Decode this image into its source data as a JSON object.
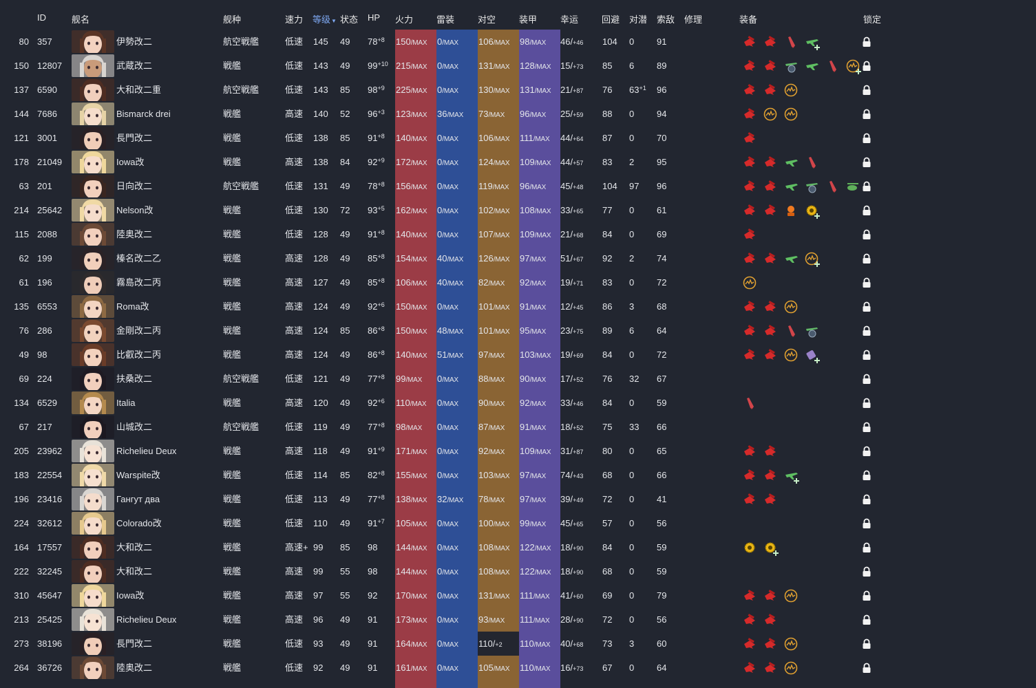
{
  "columns": {
    "id": "ID",
    "name": "舰名",
    "type": "舰种",
    "speed": "速力",
    "level": "等级",
    "condition": "状态",
    "hp": "HP",
    "firepower": "火力",
    "torpedo": "雷装",
    "aa": "对空",
    "armor": "装甲",
    "luck": "幸运",
    "evasion": "回避",
    "asw": "对潜",
    "los": "索敌",
    "repair": "修理",
    "equipment": "装备",
    "lock": "锁定"
  },
  "colors": {
    "firepower": "#9b3c46",
    "torpedo": "#2e4f96",
    "aa": "#8a6434",
    "armor": "#5a4e9c",
    "active_sort": "#7ea8f2"
  },
  "ships": [
    {
      "idx": "80",
      "id": "357",
      "name": "伊勢改二",
      "type": "航空戦艦",
      "speed": "低速",
      "level": "145",
      "cond": "49",
      "hp": "78",
      "hp_mod": "+8",
      "fire": "150",
      "torp": "0",
      "aa": "106",
      "armor": "98",
      "luck": "46/",
      "luck_mod": "+46",
      "eva": "104",
      "asw": "0",
      "asw_mod": "",
      "los": "91",
      "eq": [
        "gun",
        "gun",
        "shell",
        "plane-g"
      ],
      "plus": [
        3
      ],
      "skin": "#f3d2c0",
      "hair": "#5a3526"
    },
    {
      "idx": "150",
      "id": "12807",
      "name": "武蔵改二",
      "type": "戦艦",
      "speed": "低速",
      "level": "143",
      "cond": "49",
      "hp": "99",
      "hp_mod": "+10",
      "fire": "215",
      "torp": "0",
      "aa": "131",
      "armor": "128",
      "luck": "15/",
      "luck_mod": "+73",
      "eva": "85",
      "asw": "6",
      "asw_mod": "",
      "los": "89",
      "eq": [
        "gun",
        "gun",
        "recon",
        "plane-g",
        "shell",
        "radar"
      ],
      "plus": [
        5
      ],
      "skin": "#c99b7a",
      "hair": "#d8d4d0"
    },
    {
      "idx": "137",
      "id": "6590",
      "name": "大和改二重",
      "type": "航空戦艦",
      "speed": "低速",
      "level": "143",
      "cond": "85",
      "hp": "98",
      "hp_mod": "+9",
      "fire": "225",
      "torp": "0",
      "aa": "130",
      "armor": "131",
      "luck": "21/",
      "luck_mod": "+87",
      "eva": "76",
      "asw": "63",
      "asw_mod": "+1",
      "los": "96",
      "eq": [
        "gun",
        "gun",
        "radar"
      ],
      "plus": [],
      "skin": "#f1cfbc",
      "hair": "#4e2d22"
    },
    {
      "idx": "144",
      "id": "7686",
      "name": "Bismarck drei",
      "type": "戦艦",
      "speed": "高速",
      "level": "140",
      "cond": "52",
      "hp": "96",
      "hp_mod": "+3",
      "fire": "123",
      "torp": "36",
      "aa": "73",
      "armor": "96",
      "luck": "25/",
      "luck_mod": "+59",
      "eva": "88",
      "asw": "0",
      "asw_mod": "",
      "los": "94",
      "eq": [
        "gun",
        "radar",
        "radar"
      ],
      "plus": [],
      "skin": "#f5ddcb",
      "hair": "#e6d3a6"
    },
    {
      "idx": "121",
      "id": "3001",
      "name": "長門改二",
      "type": "戦艦",
      "speed": "低速",
      "level": "138",
      "cond": "85",
      "hp": "91",
      "hp_mod": "+8",
      "fire": "140",
      "torp": "0",
      "aa": "106",
      "armor": "111",
      "luck": "44/",
      "luck_mod": "+64",
      "eva": "87",
      "asw": "0",
      "asw_mod": "",
      "los": "70",
      "eq": [
        "gun"
      ],
      "plus": [],
      "skin": "#f0cdb8",
      "hair": "#2a2024"
    },
    {
      "idx": "178",
      "id": "21049",
      "name": "Iowa改",
      "type": "戦艦",
      "speed": "高速",
      "level": "138",
      "cond": "84",
      "hp": "92",
      "hp_mod": "+9",
      "fire": "172",
      "torp": "0",
      "aa": "124",
      "armor": "109",
      "luck": "44/",
      "luck_mod": "+57",
      "eva": "83",
      "asw": "2",
      "asw_mod": "",
      "los": "95",
      "eq": [
        "gun",
        "gun",
        "plane-g",
        "shell"
      ],
      "plus": [],
      "skin": "#f6dccb",
      "hair": "#efd79c"
    },
    {
      "idx": "63",
      "id": "201",
      "name": "日向改二",
      "type": "航空戦艦",
      "speed": "低速",
      "level": "131",
      "cond": "49",
      "hp": "78",
      "hp_mod": "+8",
      "fire": "156",
      "torp": "0",
      "aa": "119",
      "armor": "96",
      "luck": "45/",
      "luck_mod": "+48",
      "eva": "104",
      "asw": "97",
      "asw_mod": "",
      "los": "96",
      "eq": [
        "gun",
        "gun",
        "plane-g",
        "recon",
        "shell",
        "heli"
      ],
      "plus": [],
      "skin": "#f2d0bd",
      "hair": "#3a2620"
    },
    {
      "idx": "214",
      "id": "25642",
      "name": "Nelson改",
      "type": "戦艦",
      "speed": "低速",
      "level": "130",
      "cond": "72",
      "hp": "93",
      "hp_mod": "+5",
      "fire": "162",
      "torp": "0",
      "aa": "102",
      "armor": "108",
      "luck": "33/",
      "luck_mod": "+65",
      "eva": "77",
      "asw": "0",
      "asw_mod": "",
      "los": "61",
      "eq": [
        "gun",
        "gun",
        "crew",
        "aagun"
      ],
      "plus": [
        3
      ],
      "skin": "#f5dccb",
      "hair": "#f0d9a5"
    },
    {
      "idx": "115",
      "id": "2088",
      "name": "陸奥改二",
      "type": "戦艦",
      "speed": "低速",
      "level": "128",
      "cond": "49",
      "hp": "91",
      "hp_mod": "+8",
      "fire": "140",
      "torp": "0",
      "aa": "107",
      "armor": "109",
      "luck": "21/",
      "luck_mod": "+68",
      "eva": "84",
      "asw": "0",
      "asw_mod": "",
      "los": "69",
      "eq": [
        "gun"
      ],
      "plus": [],
      "skin": "#f2d0bd",
      "hair": "#6d4a36"
    },
    {
      "idx": "62",
      "id": "199",
      "name": "榛名改二乙",
      "type": "戦艦",
      "speed": "高速",
      "level": "128",
      "cond": "49",
      "hp": "85",
      "hp_mod": "+8",
      "fire": "154",
      "torp": "40",
      "aa": "126",
      "armor": "97",
      "luck": "51/",
      "luck_mod": "+67",
      "eva": "92",
      "asw": "2",
      "asw_mod": "",
      "los": "74",
      "eq": [
        "gun",
        "gun",
        "plane-g",
        "radar"
      ],
      "plus": [
        3
      ],
      "skin": "#f1cfbb",
      "hair": "#2b2226"
    },
    {
      "idx": "61",
      "id": "196",
      "name": "霧島改二丙",
      "type": "戦艦",
      "speed": "高速",
      "level": "127",
      "cond": "49",
      "hp": "85",
      "hp_mod": "+8",
      "fire": "106",
      "torp": "40",
      "aa": "82",
      "armor": "92",
      "luck": "19/",
      "luck_mod": "+71",
      "eva": "83",
      "asw": "0",
      "asw_mod": "",
      "los": "72",
      "eq": [
        "radar"
      ],
      "plus": [],
      "skin": "#efcdb9",
      "hair": "#2f2b2c"
    },
    {
      "idx": "135",
      "id": "6553",
      "name": "Roma改",
      "type": "戦艦",
      "speed": "高速",
      "level": "124",
      "cond": "49",
      "hp": "92",
      "hp_mod": "+6",
      "fire": "150",
      "torp": "0",
      "aa": "101",
      "armor": "91",
      "luck": "12/",
      "luck_mod": "+45",
      "eva": "86",
      "asw": "3",
      "asw_mod": "",
      "los": "68",
      "eq": [
        "gun",
        "gun",
        "radar"
      ],
      "plus": [],
      "skin": "#f3d5c2",
      "hair": "#8e6a43"
    },
    {
      "idx": "76",
      "id": "286",
      "name": "金剛改二丙",
      "type": "戦艦",
      "speed": "高速",
      "level": "124",
      "cond": "85",
      "hp": "86",
      "hp_mod": "+8",
      "fire": "150",
      "torp": "48",
      "aa": "101",
      "armor": "95",
      "luck": "23/",
      "luck_mod": "+75",
      "eva": "89",
      "asw": "6",
      "asw_mod": "",
      "los": "64",
      "eq": [
        "gun",
        "gun",
        "shell",
        "recon"
      ],
      "plus": [],
      "skin": "#f2d2be",
      "hair": "#7a4a30"
    },
    {
      "idx": "49",
      "id": "98",
      "name": "比叡改二丙",
      "type": "戦艦",
      "speed": "高速",
      "level": "124",
      "cond": "49",
      "hp": "86",
      "hp_mod": "+8",
      "fire": "140",
      "torp": "51",
      "aa": "97",
      "armor": "103",
      "luck": "19/",
      "luck_mod": "+69",
      "eva": "84",
      "asw": "0",
      "asw_mod": "",
      "los": "72",
      "eq": [
        "gun",
        "gun",
        "radar",
        "box"
      ],
      "plus": [
        3
      ],
      "skin": "#f3d2be",
      "hair": "#6a3c28"
    },
    {
      "idx": "69",
      "id": "224",
      "name": "扶桑改二",
      "type": "航空戦艦",
      "speed": "低速",
      "level": "121",
      "cond": "49",
      "hp": "77",
      "hp_mod": "+8",
      "fire": "99",
      "torp": "0",
      "aa": "88",
      "armor": "90",
      "luck": "17/",
      "luck_mod": "+52",
      "eva": "76",
      "asw": "32",
      "asw_mod": "",
      "los": "67",
      "eq": [],
      "plus": [],
      "skin": "#f1cfbd",
      "hair": "#1e1a22"
    },
    {
      "idx": "134",
      "id": "6529",
      "name": "Italia",
      "type": "戦艦",
      "speed": "高速",
      "level": "120",
      "cond": "49",
      "hp": "92",
      "hp_mod": "+6",
      "fire": "110",
      "torp": "0",
      "aa": "90",
      "armor": "92",
      "luck": "33/",
      "luck_mod": "+46",
      "eva": "84",
      "asw": "0",
      "asw_mod": "",
      "los": "59",
      "eq": [
        "shell"
      ],
      "plus": [],
      "skin": "#f4d6c3",
      "hair": "#b48a4e"
    },
    {
      "idx": "67",
      "id": "217",
      "name": "山城改二",
      "type": "航空戦艦",
      "speed": "低速",
      "level": "119",
      "cond": "49",
      "hp": "77",
      "hp_mod": "+8",
      "fire": "98",
      "torp": "0",
      "aa": "87",
      "armor": "91",
      "luck": "18/",
      "luck_mod": "+52",
      "eva": "75",
      "asw": "33",
      "asw_mod": "",
      "los": "66",
      "eq": [],
      "plus": [],
      "skin": "#f1cfbd",
      "hair": "#1c1820"
    },
    {
      "idx": "205",
      "id": "23962",
      "name": "Richelieu Deux",
      "type": "戦艦",
      "speed": "高速",
      "level": "118",
      "cond": "49",
      "hp": "91",
      "hp_mod": "+9",
      "fire": "171",
      "torp": "0",
      "aa": "92",
      "armor": "109",
      "luck": "31/",
      "luck_mod": "+87",
      "eva": "80",
      "asw": "0",
      "asw_mod": "",
      "los": "65",
      "eq": [
        "gun",
        "gun"
      ],
      "plus": [],
      "skin": "#f6e2d3",
      "hair": "#e8e2d8"
    },
    {
      "idx": "183",
      "id": "22554",
      "name": "Warspite改",
      "type": "戦艦",
      "speed": "低速",
      "level": "114",
      "cond": "85",
      "hp": "82",
      "hp_mod": "+8",
      "fire": "155",
      "torp": "0",
      "aa": "103",
      "armor": "97",
      "luck": "74/",
      "luck_mod": "+43",
      "eva": "68",
      "asw": "0",
      "asw_mod": "",
      "los": "66",
      "eq": [
        "gun",
        "gun",
        "plane-g"
      ],
      "plus": [
        2
      ],
      "skin": "#f6e0cf",
      "hair": "#efd9a8"
    },
    {
      "idx": "196",
      "id": "23416",
      "name": "Гангут два",
      "type": "戦艦",
      "speed": "低速",
      "level": "113",
      "cond": "49",
      "hp": "77",
      "hp_mod": "+8",
      "fire": "138",
      "torp": "32",
      "aa": "78",
      "armor": "97",
      "luck": "39/",
      "luck_mod": "+49",
      "eva": "72",
      "asw": "0",
      "asw_mod": "",
      "los": "41",
      "eq": [
        "gun",
        "gun"
      ],
      "plus": [],
      "skin": "#f4dccc",
      "hair": "#d9d6d2"
    },
    {
      "idx": "224",
      "id": "32612",
      "name": "Colorado改",
      "type": "戦艦",
      "speed": "低速",
      "level": "110",
      "cond": "49",
      "hp": "91",
      "hp_mod": "+7",
      "fire": "105",
      "torp": "0",
      "aa": "100",
      "armor": "99",
      "luck": "45/",
      "luck_mod": "+65",
      "eva": "57",
      "asw": "0",
      "asw_mod": "",
      "los": "56",
      "eq": [],
      "plus": [],
      "skin": "#f5dccb",
      "hair": "#e6c98e"
    },
    {
      "idx": "164",
      "id": "17557",
      "name": "大和改二",
      "type": "戦艦",
      "speed": "高速+",
      "level": "99",
      "cond": "85",
      "hp": "98",
      "hp_mod": "",
      "fire": "144",
      "torp": "0",
      "aa": "108",
      "armor": "122",
      "luck": "18/",
      "luck_mod": "+90",
      "eva": "84",
      "asw": "0",
      "asw_mod": "",
      "los": "59",
      "eq": [
        "aagun",
        "aagun"
      ],
      "plus": [
        1
      ],
      "skin": "#f1cfbc",
      "hair": "#4e2d22"
    },
    {
      "idx": "222",
      "id": "32245",
      "name": "大和改二",
      "type": "戦艦",
      "speed": "高速",
      "level": "99",
      "cond": "55",
      "hp": "98",
      "hp_mod": "",
      "fire": "144",
      "torp": "0",
      "aa": "108",
      "armor": "122",
      "luck": "18/",
      "luck_mod": "+90",
      "eva": "68",
      "asw": "0",
      "asw_mod": "",
      "los": "59",
      "eq": [],
      "plus": [],
      "skin": "#f1cfbc",
      "hair": "#4e2d22"
    },
    {
      "idx": "310",
      "id": "45647",
      "name": "Iowa改",
      "type": "戦艦",
      "speed": "高速",
      "level": "97",
      "cond": "55",
      "hp": "92",
      "hp_mod": "",
      "fire": "170",
      "torp": "0",
      "aa": "131",
      "armor": "111",
      "luck": "41/",
      "luck_mod": "+60",
      "eva": "69",
      "asw": "0",
      "asw_mod": "",
      "los": "79",
      "eq": [
        "gun",
        "gun",
        "radar"
      ],
      "plus": [],
      "skin": "#f6dccb",
      "hair": "#efd79c"
    },
    {
      "idx": "213",
      "id": "25425",
      "name": "Richelieu Deux",
      "type": "戦艦",
      "speed": "高速",
      "level": "96",
      "cond": "49",
      "hp": "91",
      "hp_mod": "",
      "fire": "173",
      "torp": "0",
      "aa": "93",
      "armor": "111",
      "luck": "28/",
      "luck_mod": "+90",
      "eva": "72",
      "asw": "0",
      "asw_mod": "",
      "los": "56",
      "eq": [
        "gun",
        "gun"
      ],
      "plus": [],
      "skin": "#f6e2d3",
      "hair": "#e8e2d8"
    },
    {
      "idx": "273",
      "id": "38196",
      "name": "長門改二",
      "type": "戦艦",
      "speed": "低速",
      "level": "93",
      "cond": "49",
      "hp": "91",
      "hp_mod": "",
      "fire": "164",
      "torp": "0",
      "aa": "110/",
      "aa_mod": "+2",
      "armor": "110",
      "luck": "40/",
      "luck_mod": "+68",
      "eva": "73",
      "asw": "3",
      "asw_mod": "",
      "los": "60",
      "eq": [
        "gun",
        "gun",
        "radar"
      ],
      "plus": [],
      "skin": "#f0cdb8",
      "hair": "#2a2024"
    },
    {
      "idx": "264",
      "id": "36726",
      "name": "陸奥改二",
      "type": "戦艦",
      "speed": "低速",
      "level": "92",
      "cond": "49",
      "hp": "91",
      "hp_mod": "",
      "fire": "161",
      "torp": "0",
      "aa": "105",
      "armor": "110",
      "luck": "16/",
      "luck_mod": "+73",
      "eva": "67",
      "asw": "0",
      "asw_mod": "",
      "los": "64",
      "eq": [
        "gun",
        "gun",
        "radar"
      ],
      "plus": [],
      "skin": "#f2d0bd",
      "hair": "#6d4a36"
    }
  ],
  "max_label": "/MAX"
}
